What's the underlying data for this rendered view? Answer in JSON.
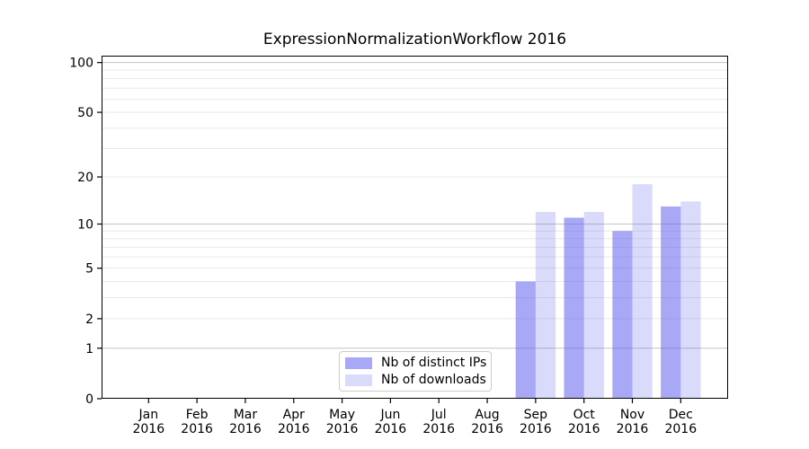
{
  "chart_data": {
    "type": "bar",
    "title": "ExpressionNormalizationWorkflow 2016",
    "categories": [
      "Jan 2016",
      "Feb 2016",
      "Mar 2016",
      "Apr 2016",
      "May 2016",
      "Jun 2016",
      "Jul 2016",
      "Aug 2016",
      "Sep 2016",
      "Oct 2016",
      "Nov 2016",
      "Dec 2016"
    ],
    "series": [
      {
        "name": "Nb of distinct IPs",
        "color_hex": "#a8a8f7",
        "fill": "rgba(88,88,239,0.52)",
        "values": [
          0,
          0,
          0,
          0,
          0,
          0,
          0,
          0,
          4,
          11,
          9,
          13
        ]
      },
      {
        "name": "Nb of downloads",
        "color_hex": "#dadaf9",
        "fill": "rgba(88,88,239,0.22)",
        "values": [
          0,
          0,
          0,
          0,
          0,
          0,
          0,
          0,
          12,
          12,
          18,
          14
        ]
      }
    ],
    "yscale": "log1p",
    "ylim": [
      0,
      110
    ],
    "yticks_labeled": [
      0,
      1,
      2,
      5,
      10,
      20,
      50,
      100
    ],
    "ygrid_major": [
      1,
      10,
      100
    ],
    "ygrid_minor": [
      2,
      3,
      4,
      5,
      6,
      7,
      8,
      9,
      20,
      30,
      40,
      50,
      60,
      70,
      80,
      90
    ],
    "grid": true,
    "legend_position": "lower center inside"
  },
  "colors": {
    "background": "#ffffff",
    "spine": "#000000",
    "text": "#000000",
    "grid_major": "#c4c4c4",
    "grid_minor": "#e9e9e9",
    "legend_border": "#cccccc",
    "legend_background": "rgba(255,255,255,0.8)"
  }
}
